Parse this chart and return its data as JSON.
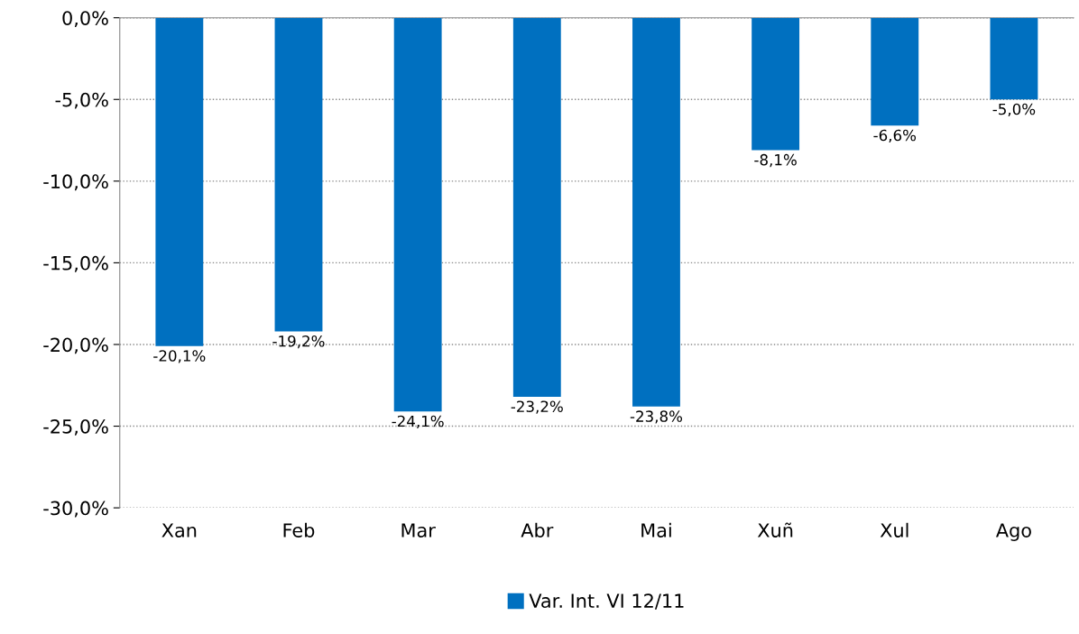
{
  "chart_data": {
    "type": "bar",
    "categories": [
      "Xan",
      "Feb",
      "Mar",
      "Abr",
      "Mai",
      "Xuñ",
      "Xul",
      "Ago"
    ],
    "series": [
      {
        "name": "Var. Int. VI 12/11",
        "color": "#0070c0",
        "values": [
          -20.1,
          -19.2,
          -24.1,
          -23.2,
          -23.8,
          -8.1,
          -6.6,
          -5.0
        ],
        "value_labels": [
          "-20,1%",
          "-19,2%",
          "-24,1%",
          "-23,2%",
          "-23,8%",
          "-8,1%",
          "-6,6%",
          "-5,0%"
        ]
      }
    ],
    "ylim": [
      -30,
      0
    ],
    "yticks": [
      {
        "value": 0,
        "label": "0,0%"
      },
      {
        "value": -5,
        "label": "-5,0%"
      },
      {
        "value": -10,
        "label": "-10,0%"
      },
      {
        "value": -15,
        "label": "-15,0%"
      },
      {
        "value": -20,
        "label": "-20,0%"
      },
      {
        "value": -25,
        "label": "-25,0%"
      },
      {
        "value": -30,
        "label": "-30,0%"
      }
    ],
    "grid": "y",
    "legend": "bottom"
  }
}
